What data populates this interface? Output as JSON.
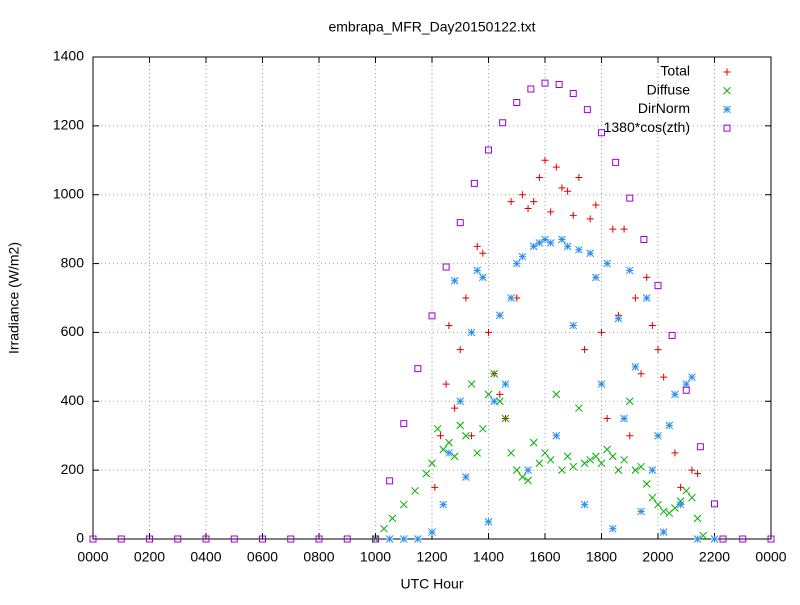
{
  "chart_data": {
    "type": "scatter",
    "title": "embrapa_MFR_Day20150122.txt",
    "xlabel": "UTC Hour",
    "ylabel": "Irradiance (W/m2)",
    "xlim": [
      0,
      24
    ],
    "ylim": [
      0,
      1400
    ],
    "xticks": [
      {
        "value": 0,
        "label": "0000"
      },
      {
        "value": 2,
        "label": "0200"
      },
      {
        "value": 4,
        "label": "0400"
      },
      {
        "value": 6,
        "label": "0600"
      },
      {
        "value": 8,
        "label": "0800"
      },
      {
        "value": 10,
        "label": "1000"
      },
      {
        "value": 12,
        "label": "1200"
      },
      {
        "value": 14,
        "label": "1400"
      },
      {
        "value": 16,
        "label": "1600"
      },
      {
        "value": 18,
        "label": "1800"
      },
      {
        "value": 20,
        "label": "2000"
      },
      {
        "value": 22,
        "label": "2200"
      },
      {
        "value": 24,
        "label": "0000"
      }
    ],
    "yticks": [
      0,
      200,
      400,
      600,
      800,
      1000,
      1200,
      1400
    ],
    "grid": true,
    "legend": "top-right",
    "series": [
      {
        "name": "Total",
        "color": "#e00000",
        "marker": "plus",
        "x": [
          12.1,
          12.3,
          12.5,
          12.6,
          12.8,
          13.0,
          13.2,
          13.4,
          13.6,
          13.8,
          14.0,
          14.2,
          14.4,
          14.6,
          14.8,
          15.0,
          15.2,
          15.4,
          15.6,
          15.8,
          16.0,
          16.2,
          16.4,
          16.6,
          16.8,
          17.0,
          17.2,
          17.4,
          17.6,
          17.8,
          18.0,
          18.2,
          18.4,
          18.6,
          18.8,
          19.0,
          19.2,
          19.4,
          19.6,
          19.8,
          20.0,
          20.2,
          20.6,
          20.8,
          21.2,
          21.4
        ],
        "values": [
          150,
          300,
          450,
          620,
          380,
          550,
          700,
          300,
          850,
          830,
          600,
          480,
          420,
          350,
          980,
          700,
          1000,
          960,
          980,
          1050,
          1100,
          950,
          1080,
          1020,
          1010,
          940,
          1050,
          550,
          930,
          970,
          600,
          350,
          900,
          650,
          900,
          300,
          700,
          480,
          760,
          620,
          550,
          470,
          250,
          150,
          200,
          190
        ]
      },
      {
        "name": "Diffuse",
        "color": "#00b000",
        "marker": "cross",
        "x": [
          10.0,
          10.3,
          10.6,
          11.0,
          11.4,
          11.8,
          12.0,
          12.2,
          12.4,
          12.6,
          12.8,
          13.0,
          13.2,
          13.4,
          13.6,
          13.8,
          14.0,
          14.2,
          14.4,
          14.6,
          14.8,
          15.0,
          15.2,
          15.4,
          15.6,
          15.8,
          16.0,
          16.2,
          16.4,
          16.6,
          16.8,
          17.0,
          17.2,
          17.4,
          17.6,
          17.8,
          18.0,
          18.2,
          18.4,
          18.6,
          18.8,
          19.0,
          19.2,
          19.4,
          19.6,
          19.8,
          20.0,
          20.2,
          20.4,
          20.6,
          20.8,
          21.0,
          21.2,
          21.4,
          21.6
        ],
        "values": [
          0,
          30,
          60,
          100,
          140,
          190,
          220,
          320,
          260,
          280,
          240,
          330,
          300,
          450,
          250,
          320,
          420,
          480,
          400,
          350,
          250,
          200,
          180,
          170,
          280,
          220,
          250,
          230,
          420,
          200,
          240,
          210,
          380,
          220,
          230,
          240,
          220,
          260,
          240,
          200,
          230,
          400,
          200,
          210,
          160,
          120,
          100,
          80,
          75,
          90,
          110,
          140,
          120,
          60,
          10
        ]
      },
      {
        "name": "DirNorm",
        "color": "#2a8ef0",
        "marker": "star",
        "x": [
          10.5,
          11.0,
          11.5,
          12.0,
          12.4,
          12.6,
          12.8,
          13.0,
          13.2,
          13.4,
          13.6,
          13.8,
          14.0,
          14.2,
          14.4,
          14.6,
          14.8,
          15.0,
          15.2,
          15.4,
          15.6,
          15.8,
          16.0,
          16.2,
          16.4,
          16.6,
          16.8,
          17.0,
          17.2,
          17.4,
          17.6,
          17.8,
          18.0,
          18.2,
          18.4,
          18.6,
          18.8,
          19.0,
          19.2,
          19.4,
          19.6,
          19.8,
          20.0,
          20.2,
          20.4,
          20.6,
          20.8,
          21.0,
          21.2,
          21.4,
          22.0
        ],
        "values": [
          0,
          0,
          0,
          20,
          100,
          250,
          750,
          400,
          180,
          600,
          780,
          760,
          50,
          400,
          650,
          450,
          700,
          800,
          820,
          200,
          850,
          860,
          870,
          860,
          300,
          870,
          850,
          620,
          840,
          100,
          830,
          760,
          450,
          800,
          30,
          640,
          350,
          780,
          500,
          80,
          700,
          200,
          300,
          20,
          330,
          420,
          100,
          450,
          470,
          0,
          0
        ]
      },
      {
        "name": "1380*cos(zth)",
        "color": "#a000d8",
        "marker": "square",
        "x": [
          0,
          1,
          2,
          3,
          4,
          5,
          6,
          7,
          8,
          9,
          10,
          10.5,
          11,
          11.5,
          12,
          12.5,
          13,
          13.5,
          14,
          14.5,
          15,
          15.5,
          16,
          16.5,
          17,
          17.5,
          18,
          18.5,
          19,
          19.5,
          20,
          20.5,
          21,
          21.5,
          22,
          22.3,
          23,
          24
        ],
        "values": [
          0,
          0,
          0,
          0,
          0,
          0,
          0,
          0,
          0,
          0,
          0,
          169,
          335,
          495,
          648,
          790,
          919,
          1033,
          1130,
          1209,
          1268,
          1307,
          1324,
          1320,
          1294,
          1247,
          1180,
          1094,
          990,
          870,
          736,
          591,
          432,
          268,
          102,
          0,
          0,
          0
        ]
      }
    ]
  }
}
